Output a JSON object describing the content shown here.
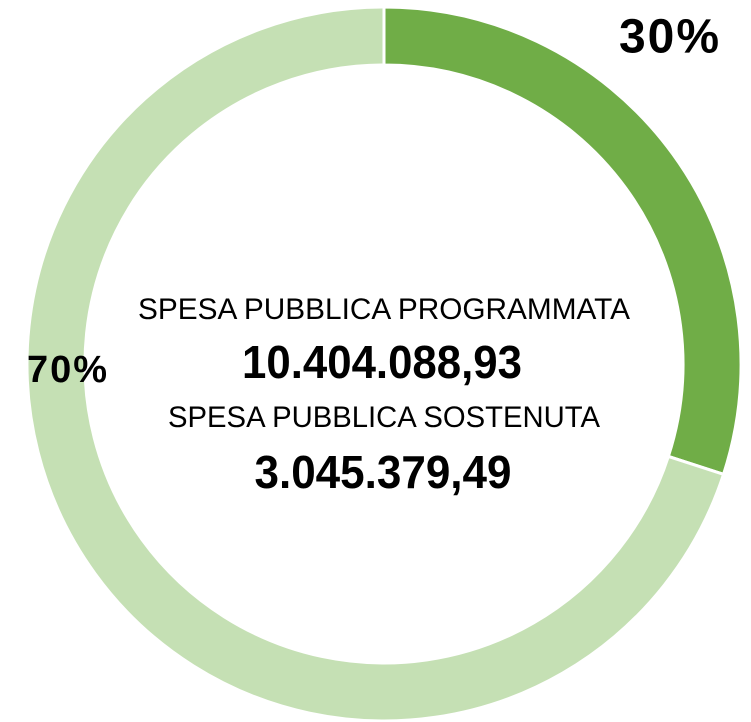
{
  "chart_data": {
    "type": "donut",
    "values": [
      30,
      70
    ],
    "value_labels": [
      "30%",
      "70%"
    ],
    "colors": [
      "#70ad47",
      "#c5e0b4"
    ],
    "label_colors": [
      "#70ad47",
      "#1a1a1a"
    ],
    "annotations": [
      "SPESA PUBBLICA PROGRAMMATA",
      "10.404.088,93",
      "SPESA PUBBLICA SOSTENUTA",
      "3.045.379,49"
    ]
  }
}
